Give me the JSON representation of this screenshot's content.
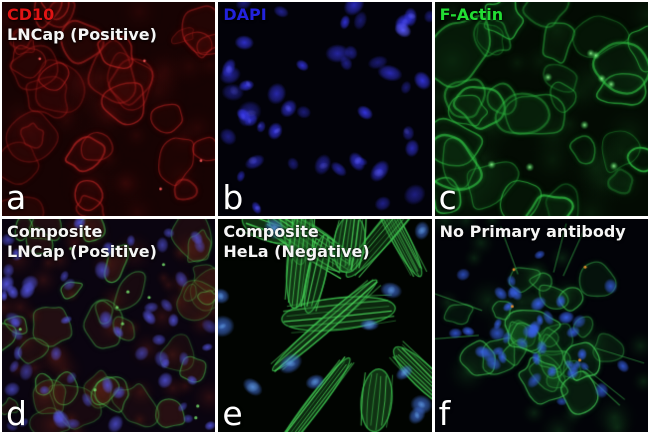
{
  "figure": {
    "type": "immunofluorescence-micrograph-grid",
    "rows": 2,
    "columns": 3,
    "channel_colors": {
      "red": "#e01818",
      "green": "#22dd33",
      "blue": "#2525e0",
      "white": "#f5f5f5"
    }
  },
  "panels": [
    {
      "letter": "a",
      "lines": [
        {
          "text": "CD10",
          "color": "#e01414"
        },
        {
          "text": "LNCap (Positive)",
          "color": "#f5f5f5"
        }
      ]
    },
    {
      "letter": "b",
      "lines": [
        {
          "text": "DAPI",
          "color": "#2222dd"
        }
      ]
    },
    {
      "letter": "c",
      "lines": [
        {
          "text": "F-Actin",
          "color": "#22dd33"
        }
      ]
    },
    {
      "letter": "d",
      "lines": [
        {
          "text": "Composite",
          "color": "#f5f5f5"
        },
        {
          "text": "LNCap (Positive)",
          "color": "#f5f5f5"
        }
      ]
    },
    {
      "letter": "e",
      "lines": [
        {
          "text": "Composite",
          "color": "#f5f5f5"
        },
        {
          "text": "HeLa (Negative)",
          "color": "#f5f5f5"
        }
      ]
    },
    {
      "letter": "f",
      "lines": [
        {
          "text": "No Primary antibody",
          "color": "#f5f5f5"
        }
      ]
    }
  ]
}
